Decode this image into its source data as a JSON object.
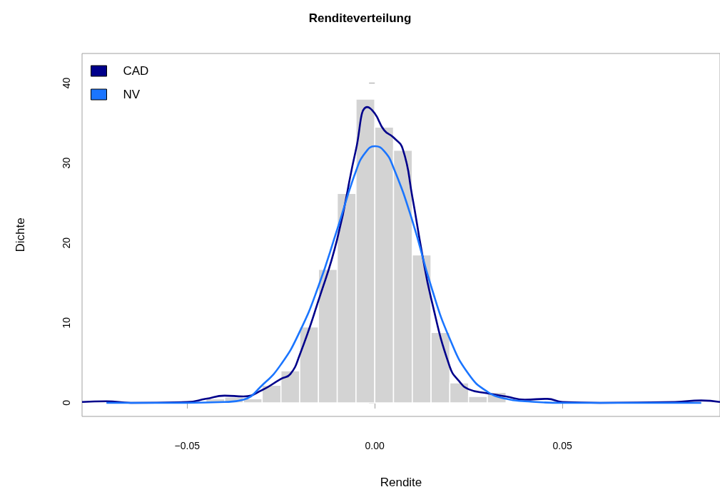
{
  "chart_data": {
    "type": "histogram",
    "title": "Renditeverteilung",
    "xlabel": "Rendite",
    "ylabel": "Dichte",
    "bins": [
      -0.045,
      -0.04,
      -0.035,
      -0.03,
      -0.025,
      -0.02,
      -0.015,
      -0.01,
      -0.005,
      0,
      0.005,
      0.01,
      0.015,
      0.02,
      0.025,
      0.03,
      0.035
    ],
    "values": [
      0.5,
      0.7,
      0.5,
      2.2,
      4.0,
      9.5,
      16.7,
      26.2,
      38.0,
      34.5,
      31.6,
      18.5,
      8.8,
      2.5,
      0.8,
      1.3
    ],
    "color": "#d3d3d3",
    "series": [
      {
        "type": "line",
        "name": "CAD",
        "color": "#00008b",
        "x": [
          -0.078,
          -0.0715,
          -0.065,
          -0.05,
          -0.045,
          -0.04,
          -0.035,
          -0.03,
          -0.025,
          -0.0225,
          -0.02,
          -0.015,
          -0.01,
          -0.005,
          -0.002,
          0,
          0.0025,
          0.005,
          0.0075,
          0.01,
          0.0125,
          0.015,
          0.02,
          0.0225,
          0.025,
          0.03,
          0.035,
          0.04,
          0.046,
          0.05,
          0.06,
          0.08,
          0.087,
          0.092
        ],
        "values": [
          0.1,
          0.2,
          0,
          0.1,
          0.5,
          0.9,
          0.8,
          1.6,
          3.0,
          3.6,
          6.0,
          12.8,
          20.5,
          31.7,
          37.0,
          36.2,
          34.1,
          33.2,
          31.7,
          25.8,
          19.0,
          13.1,
          4.5,
          2.7,
          1.7,
          1.2,
          0.8,
          0.4,
          0.5,
          0.1,
          0,
          0.1,
          0.3,
          0.1
        ]
      },
      {
        "type": "line",
        "name": "NV",
        "color": "#1a75ff",
        "x": [
          -0.0715,
          -0.05,
          -0.04,
          -0.035,
          -0.03,
          -0.025,
          -0.02,
          -0.015,
          -0.01,
          -0.005,
          -0.0025,
          0,
          0.0025,
          0.005,
          0.01,
          0.015,
          0.02,
          0.025,
          0.03,
          0.035,
          0.04,
          0.05,
          0.087
        ],
        "values": [
          0,
          0,
          0.1,
          0.4,
          2.2,
          4.8,
          8.9,
          14.6,
          21.7,
          29.0,
          31.3,
          32.1,
          31.5,
          29.4,
          22.8,
          14.6,
          8.0,
          3.6,
          1.4,
          0.5,
          0.2,
          0,
          0
        ]
      }
    ],
    "xlim": [
      -0.078,
      0.092
    ],
    "xticks": [
      {
        "value": -0.05,
        "label": "−0.05"
      },
      {
        "value": 0,
        "label": "0.00"
      },
      {
        "value": 0.05,
        "label": "0.05"
      }
    ],
    "ylim": [
      -1.7,
      43.7
    ],
    "yticks": [
      0,
      10,
      20,
      30,
      40
    ],
    "legend": "top left",
    "grid": false
  }
}
